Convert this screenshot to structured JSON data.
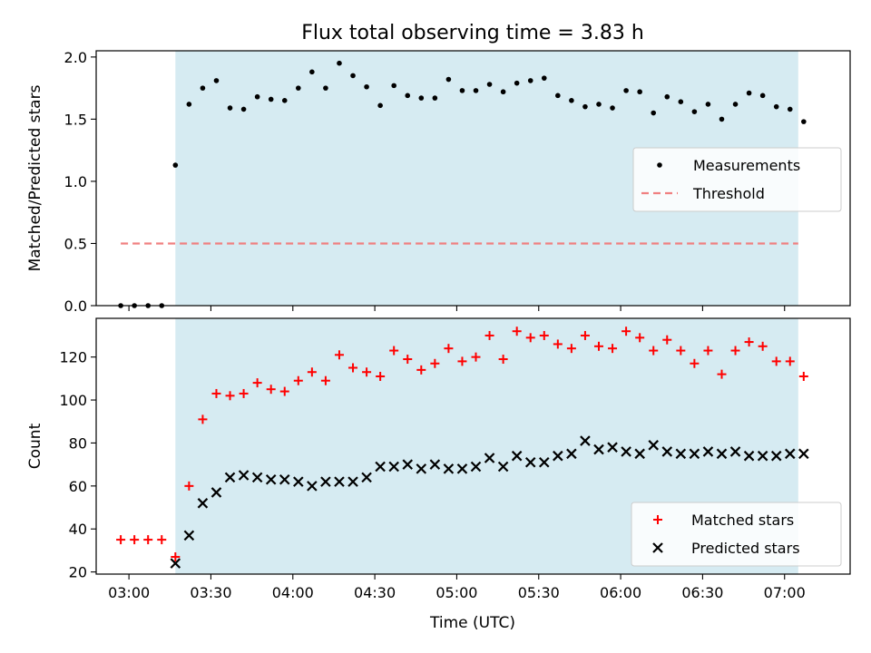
{
  "chart_data": {
    "type": "scatter",
    "title": "Flux total observing time = 3.83 h",
    "xlabel": "Time (UTC)",
    "x_ticks": [
      "03:00",
      "03:30",
      "04:00",
      "04:30",
      "05:00",
      "05:30",
      "06:00",
      "06:30",
      "07:00"
    ],
    "xlim": [
      "02:48",
      "07:24"
    ],
    "shaded_interval": [
      "03:17",
      "07:05"
    ],
    "shade_color": "#add8e6",
    "top": {
      "ylabel": "Matched/Predicted stars",
      "ylim": [
        0,
        2.05
      ],
      "y_ticks": [
        "0.0",
        "0.5",
        "1.0",
        "1.5",
        "2.0"
      ],
      "legend_position": "center-right",
      "series": [
        {
          "name": "Measurements",
          "marker": "dot",
          "color": "#000000",
          "x": [
            "02:57",
            "03:02",
            "03:07",
            "03:12",
            "03:17",
            "03:22",
            "03:27",
            "03:32",
            "03:37",
            "03:42",
            "03:47",
            "03:52",
            "03:57",
            "04:02",
            "04:07",
            "04:12",
            "04:17",
            "04:22",
            "04:27",
            "04:32",
            "04:37",
            "04:42",
            "04:47",
            "04:52",
            "04:57",
            "05:02",
            "05:07",
            "05:12",
            "05:17",
            "05:22",
            "05:27",
            "05:32",
            "05:37",
            "05:42",
            "05:47",
            "05:52",
            "05:57",
            "06:02",
            "06:07",
            "06:12",
            "06:17",
            "06:22",
            "06:27",
            "06:32",
            "06:37",
            "06:42",
            "06:47",
            "06:52",
            "06:57",
            "07:02",
            "07:07"
          ],
          "y": [
            0,
            0,
            0,
            0,
            1.13,
            1.62,
            1.75,
            1.81,
            1.59,
            1.58,
            1.68,
            1.66,
            1.65,
            1.75,
            1.88,
            1.75,
            1.95,
            1.85,
            1.76,
            1.61,
            1.77,
            1.69,
            1.67,
            1.67,
            1.82,
            1.73,
            1.73,
            1.78,
            1.72,
            1.79,
            1.81,
            1.83,
            1.69,
            1.65,
            1.6,
            1.62,
            1.59,
            1.73,
            1.72,
            1.55,
            1.68,
            1.64,
            1.56,
            1.62,
            1.5,
            1.62,
            1.71,
            1.69,
            1.6,
            1.58,
            1.48
          ]
        },
        {
          "name": "Threshold",
          "style": "dashed",
          "color": "#f08080",
          "x": [
            "02:57",
            "07:05"
          ],
          "y": [
            0.5,
            0.5
          ]
        }
      ]
    },
    "bottom": {
      "ylabel": "Count",
      "ylim": [
        19,
        138
      ],
      "y_ticks": [
        "20",
        "40",
        "60",
        "80",
        "100",
        "120"
      ],
      "legend_position": "bottom-right",
      "series": [
        {
          "name": "Matched stars",
          "marker": "plus",
          "color": "#ff0000",
          "x": [
            "02:57",
            "03:02",
            "03:07",
            "03:12",
            "03:17",
            "03:22",
            "03:27",
            "03:32",
            "03:37",
            "03:42",
            "03:47",
            "03:52",
            "03:57",
            "04:02",
            "04:07",
            "04:12",
            "04:17",
            "04:22",
            "04:27",
            "04:32",
            "04:37",
            "04:42",
            "04:47",
            "04:52",
            "04:57",
            "05:02",
            "05:07",
            "05:12",
            "05:17",
            "05:22",
            "05:27",
            "05:32",
            "05:37",
            "05:42",
            "05:47",
            "05:52",
            "05:57",
            "06:02",
            "06:07",
            "06:12",
            "06:17",
            "06:22",
            "06:27",
            "06:32",
            "06:37",
            "06:42",
            "06:47",
            "06:52",
            "06:57",
            "07:02",
            "07:07"
          ],
          "y": [
            35,
            35,
            35,
            35,
            27,
            60,
            91,
            103,
            102,
            103,
            108,
            105,
            104,
            109,
            113,
            109,
            121,
            115,
            113,
            111,
            123,
            119,
            114,
            117,
            124,
            118,
            120,
            130,
            119,
            132,
            129,
            130,
            126,
            124,
            130,
            125,
            124,
            132,
            129,
            123,
            128,
            123,
            117,
            123,
            112,
            123,
            127,
            125,
            118,
            118,
            111
          ]
        },
        {
          "name": "Predicted stars",
          "marker": "x",
          "color": "#000000",
          "x": [
            "03:17",
            "03:22",
            "03:27",
            "03:32",
            "03:37",
            "03:42",
            "03:47",
            "03:52",
            "03:57",
            "04:02",
            "04:07",
            "04:12",
            "04:17",
            "04:22",
            "04:27",
            "04:32",
            "04:37",
            "04:42",
            "04:47",
            "04:52",
            "04:57",
            "05:02",
            "05:07",
            "05:12",
            "05:17",
            "05:22",
            "05:27",
            "05:32",
            "05:37",
            "05:42",
            "05:47",
            "05:52",
            "05:57",
            "06:02",
            "06:07",
            "06:12",
            "06:17",
            "06:22",
            "06:27",
            "06:32",
            "06:37",
            "06:42",
            "06:47",
            "06:52",
            "06:57",
            "07:02",
            "07:07"
          ],
          "y": [
            24,
            37,
            52,
            57,
            64,
            65,
            64,
            63,
            63,
            62,
            60,
            62,
            62,
            62,
            64,
            69,
            69,
            70,
            68,
            70,
            68,
            68,
            69,
            73,
            69,
            74,
            71,
            71,
            74,
            75,
            81,
            77,
            78,
            76,
            75,
            79,
            76,
            75,
            75,
            76,
            75,
            76,
            74,
            74,
            74,
            75,
            75
          ]
        }
      ]
    }
  }
}
